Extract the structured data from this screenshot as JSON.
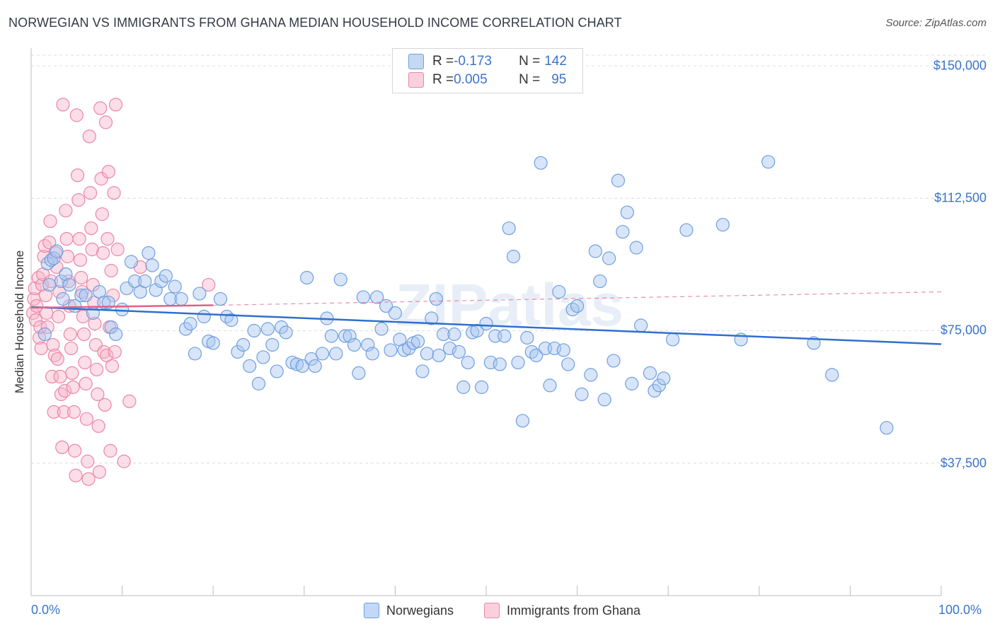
{
  "title": "NORWEGIAN VS IMMIGRANTS FROM GHANA MEDIAN HOUSEHOLD INCOME CORRELATION CHART",
  "source": "Source: ZipAtlas.com",
  "watermark": "ZIPatlas",
  "legend": {
    "rows": [
      {
        "r_label": "R = ",
        "r_value": "-0.173",
        "n_label": "N = ",
        "n_value": "142",
        "color": "#a9c5ef"
      },
      {
        "r_label": "R = ",
        "r_value": "0.005",
        "n_label": "N = ",
        "n_value": "95",
        "color": "#f6b6c9"
      }
    ]
  },
  "bottom_legend": [
    {
      "label": "Norwegians",
      "color": "#a9c5ef"
    },
    {
      "label": "Immigrants from Ghana",
      "color": "#f6b6c9"
    }
  ],
  "chart_data": {
    "type": "scatter",
    "xlabel": "",
    "ylabel": "Median Household Income",
    "xlim": [
      0,
      100
    ],
    "ylim": [
      0,
      153000
    ],
    "x_tick_labels": [
      "0.0%",
      "100.0%"
    ],
    "y_ticks": [
      {
        "value": 37500,
        "label": "$37,500"
      },
      {
        "value": 75000,
        "label": "$75,000"
      },
      {
        "value": 112500,
        "label": "$112,500"
      },
      {
        "value": 150000,
        "label": "$150,000"
      }
    ],
    "grid": "horizontal dashed",
    "colors": {
      "blue_fill": "#a9c5ef",
      "blue_stroke": "#6f9fe0",
      "blue_line": "#2f6fd0",
      "pink_fill": "#f6b6c9",
      "pink_stroke": "#ec86a5",
      "pink_line": "#e0608a"
    },
    "series": [
      {
        "name": "Norwegians",
        "trend": {
          "x0": 0,
          "y0": 81700,
          "x1": 100,
          "y1": 71200
        },
        "points": [
          [
            1.5,
            74000
          ],
          [
            1.8,
            94000
          ],
          [
            2.0,
            88000
          ],
          [
            2.2,
            95000
          ],
          [
            2.5,
            95500
          ],
          [
            2.8,
            97500
          ],
          [
            3.3,
            89000
          ],
          [
            3.5,
            84000
          ],
          [
            3.8,
            91000
          ],
          [
            4.2,
            88000
          ],
          [
            4.8,
            82000
          ],
          [
            5.5,
            85000
          ],
          [
            6.0,
            85000
          ],
          [
            6.8,
            80000
          ],
          [
            7.5,
            86000
          ],
          [
            8.0,
            83000
          ],
          [
            8.5,
            83000
          ],
          [
            8.8,
            76000
          ],
          [
            9.3,
            74000
          ],
          [
            10.0,
            81000
          ],
          [
            10.5,
            87000
          ],
          [
            11.0,
            94500
          ],
          [
            11.4,
            89000
          ],
          [
            12.0,
            86000
          ],
          [
            12.5,
            89000
          ],
          [
            12.9,
            97000
          ],
          [
            13.3,
            93500
          ],
          [
            13.7,
            86500
          ],
          [
            14.3,
            89000
          ],
          [
            14.8,
            90500
          ],
          [
            15.3,
            84000
          ],
          [
            15.8,
            87500
          ],
          [
            16.5,
            84000
          ],
          [
            17.0,
            75500
          ],
          [
            17.5,
            77000
          ],
          [
            18.0,
            68500
          ],
          [
            18.5,
            85500
          ],
          [
            19.0,
            79000
          ],
          [
            19.5,
            72000
          ],
          [
            20.0,
            71500
          ],
          [
            20.8,
            84000
          ],
          [
            21.5,
            79000
          ],
          [
            22.0,
            78000
          ],
          [
            22.7,
            69000
          ],
          [
            23.3,
            71000
          ],
          [
            24.0,
            65000
          ],
          [
            24.5,
            75000
          ],
          [
            25.0,
            60000
          ],
          [
            25.5,
            67500
          ],
          [
            26.0,
            75500
          ],
          [
            26.5,
            71000
          ],
          [
            27.0,
            63500
          ],
          [
            27.5,
            76000
          ],
          [
            28.0,
            74500
          ],
          [
            28.7,
            66000
          ],
          [
            29.2,
            65500
          ],
          [
            29.8,
            65000
          ],
          [
            30.3,
            90000
          ],
          [
            30.8,
            67000
          ],
          [
            31.2,
            65000
          ],
          [
            32.0,
            68500
          ],
          [
            32.5,
            78500
          ],
          [
            33.0,
            73500
          ],
          [
            33.5,
            68500
          ],
          [
            34.0,
            89500
          ],
          [
            34.5,
            73500
          ],
          [
            35.0,
            73500
          ],
          [
            35.5,
            71000
          ],
          [
            36.0,
            63000
          ],
          [
            36.5,
            84500
          ],
          [
            37.0,
            71000
          ],
          [
            37.5,
            68500
          ],
          [
            38.0,
            84500
          ],
          [
            38.5,
            75500
          ],
          [
            39.0,
            82000
          ],
          [
            39.5,
            69500
          ],
          [
            40.0,
            80000
          ],
          [
            40.5,
            72500
          ],
          [
            41.0,
            69500
          ],
          [
            41.5,
            70000
          ],
          [
            42.0,
            71500
          ],
          [
            42.5,
            72000
          ],
          [
            43.0,
            63500
          ],
          [
            43.5,
            68500
          ],
          [
            44.0,
            78500
          ],
          [
            44.5,
            84000
          ],
          [
            44.8,
            68000
          ],
          [
            45.3,
            74000
          ],
          [
            46.0,
            70000
          ],
          [
            46.5,
            74000
          ],
          [
            47.0,
            69000
          ],
          [
            47.5,
            59000
          ],
          [
            48.0,
            66000
          ],
          [
            48.5,
            74500
          ],
          [
            49.0,
            75000
          ],
          [
            49.5,
            59000
          ],
          [
            50.0,
            77000
          ],
          [
            50.5,
            66000
          ],
          [
            51.0,
            73500
          ],
          [
            51.5,
            65500
          ],
          [
            52.0,
            73500
          ],
          [
            52.5,
            104000
          ],
          [
            53.0,
            96000
          ],
          [
            53.5,
            66000
          ],
          [
            54.0,
            49500
          ],
          [
            54.5,
            73000
          ],
          [
            55.0,
            69000
          ],
          [
            55.5,
            68000
          ],
          [
            56.0,
            122500
          ],
          [
            56.5,
            70000
          ],
          [
            57.0,
            59500
          ],
          [
            57.5,
            70000
          ],
          [
            58.0,
            86000
          ],
          [
            58.5,
            69500
          ],
          [
            59.0,
            65500
          ],
          [
            59.5,
            81000
          ],
          [
            60.0,
            82000
          ],
          [
            60.5,
            57000
          ],
          [
            61.5,
            62500
          ],
          [
            62.0,
            97500
          ],
          [
            62.5,
            89000
          ],
          [
            63.0,
            55500
          ],
          [
            63.5,
            95500
          ],
          [
            64.0,
            66500
          ],
          [
            64.5,
            117500
          ],
          [
            65.0,
            103000
          ],
          [
            65.5,
            108500
          ],
          [
            66.0,
            60000
          ],
          [
            66.5,
            98500
          ],
          [
            67.0,
            76500
          ],
          [
            68.0,
            63000
          ],
          [
            68.5,
            58000
          ],
          [
            69.0,
            59500
          ],
          [
            69.5,
            61500
          ],
          [
            70.5,
            72500
          ],
          [
            72.0,
            103500
          ],
          [
            76.0,
            105000
          ],
          [
            78.0,
            72500
          ],
          [
            81.0,
            122800
          ],
          [
            86.0,
            71500
          ],
          [
            88.0,
            62500
          ],
          [
            94.0,
            47500
          ]
        ]
      },
      {
        "name": "Immigrants from Ghana",
        "trend": {
          "x0": 0,
          "y0": 81500,
          "x1": 20,
          "y1": 82200,
          "dashed_to_x": 100,
          "dashed_to_y": 86000
        },
        "points": [
          [
            0.2,
            80000
          ],
          [
            0.3,
            84000
          ],
          [
            0.4,
            87000
          ],
          [
            0.5,
            78000
          ],
          [
            0.6,
            82000
          ],
          [
            0.8,
            90000
          ],
          [
            0.9,
            73000
          ],
          [
            1.0,
            76000
          ],
          [
            1.1,
            70000
          ],
          [
            1.2,
            88000
          ],
          [
            1.3,
            91000
          ],
          [
            1.4,
            96000
          ],
          [
            1.5,
            99000
          ],
          [
            1.6,
            85000
          ],
          [
            1.7,
            80000
          ],
          [
            1.8,
            76000
          ],
          [
            2.0,
            100000
          ],
          [
            2.1,
            106000
          ],
          [
            2.2,
            89000
          ],
          [
            2.3,
            62000
          ],
          [
            2.4,
            71000
          ],
          [
            2.5,
            52000
          ],
          [
            2.6,
            68000
          ],
          [
            2.7,
            97000
          ],
          [
            2.8,
            93000
          ],
          [
            2.9,
            67000
          ],
          [
            3.0,
            79000
          ],
          [
            3.1,
            86000
          ],
          [
            3.2,
            62000
          ],
          [
            3.3,
            57000
          ],
          [
            3.4,
            42000
          ],
          [
            3.5,
            139000
          ],
          [
            3.6,
            52000
          ],
          [
            3.7,
            58000
          ],
          [
            3.8,
            109000
          ],
          [
            3.9,
            101000
          ],
          [
            4.0,
            96000
          ],
          [
            4.1,
            89000
          ],
          [
            4.2,
            82000
          ],
          [
            4.3,
            74000
          ],
          [
            4.4,
            70000
          ],
          [
            4.5,
            63000
          ],
          [
            4.6,
            59000
          ],
          [
            4.7,
            52000
          ],
          [
            4.8,
            41000
          ],
          [
            4.9,
            34000
          ],
          [
            5.0,
            136000
          ],
          [
            5.1,
            119000
          ],
          [
            5.2,
            112000
          ],
          [
            5.3,
            101000
          ],
          [
            5.4,
            95000
          ],
          [
            5.5,
            90000
          ],
          [
            5.6,
            86000
          ],
          [
            5.7,
            79000
          ],
          [
            5.8,
            74000
          ],
          [
            5.9,
            66000
          ],
          [
            6.0,
            60000
          ],
          [
            6.1,
            50000
          ],
          [
            6.2,
            38000
          ],
          [
            6.3,
            33000
          ],
          [
            6.4,
            130000
          ],
          [
            6.5,
            114000
          ],
          [
            6.6,
            104000
          ],
          [
            6.7,
            98000
          ],
          [
            6.8,
            88000
          ],
          [
            6.9,
            83000
          ],
          [
            7.0,
            77000
          ],
          [
            7.1,
            71000
          ],
          [
            7.2,
            64000
          ],
          [
            7.3,
            57000
          ],
          [
            7.4,
            48000
          ],
          [
            7.5,
            35000
          ],
          [
            7.6,
            138000
          ],
          [
            7.7,
            118000
          ],
          [
            7.8,
            108000
          ],
          [
            7.9,
            97000
          ],
          [
            8.0,
            69000
          ],
          [
            8.1,
            54000
          ],
          [
            8.2,
            134000
          ],
          [
            8.3,
            68000
          ],
          [
            8.4,
            101000
          ],
          [
            8.5,
            120000
          ],
          [
            8.6,
            76000
          ],
          [
            8.7,
            41000
          ],
          [
            8.8,
            92000
          ],
          [
            8.9,
            65000
          ],
          [
            9.0,
            85000
          ],
          [
            9.1,
            114000
          ],
          [
            9.2,
            69000
          ],
          [
            9.3,
            139000
          ],
          [
            9.5,
            98000
          ],
          [
            10.2,
            38000
          ],
          [
            10.8,
            55000
          ],
          [
            12.0,
            93000
          ],
          [
            19.5,
            88000
          ]
        ]
      }
    ]
  }
}
